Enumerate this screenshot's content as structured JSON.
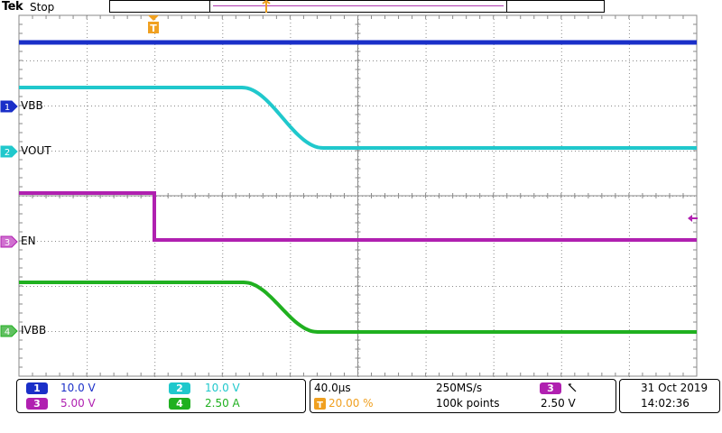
{
  "status_bar": {
    "brand": "Tek",
    "acquisition_state": "Stop"
  },
  "colors": {
    "ch1": "#1a2fc8",
    "ch2": "#20c8cc",
    "ch3": "#b020b0",
    "ch4": "#20b020",
    "trigger": "#f0a020",
    "grid": "#8a8a8a"
  },
  "channels": [
    {
      "id": "1",
      "name": "VBB",
      "scale": "10.0 V"
    },
    {
      "id": "2",
      "name": "VOUT",
      "scale": "10.0 V"
    },
    {
      "id": "3",
      "name": "EN",
      "scale": "5.00 V"
    },
    {
      "id": "4",
      "name": "IVBB",
      "scale": "2.50 A"
    }
  ],
  "horizontal": {
    "time_per_div": "40.0µs",
    "sample_rate": "250MS/s",
    "trigger_position": "20.00 %",
    "record_length": "100k points",
    "trigger_source": "3",
    "trigger_slope_icon": "falling-edge-icon",
    "trigger_level": "2.50 V",
    "trigger_marker": "T"
  },
  "datetime": {
    "date": "31 Oct  2019",
    "time": "14:02:36"
  }
}
